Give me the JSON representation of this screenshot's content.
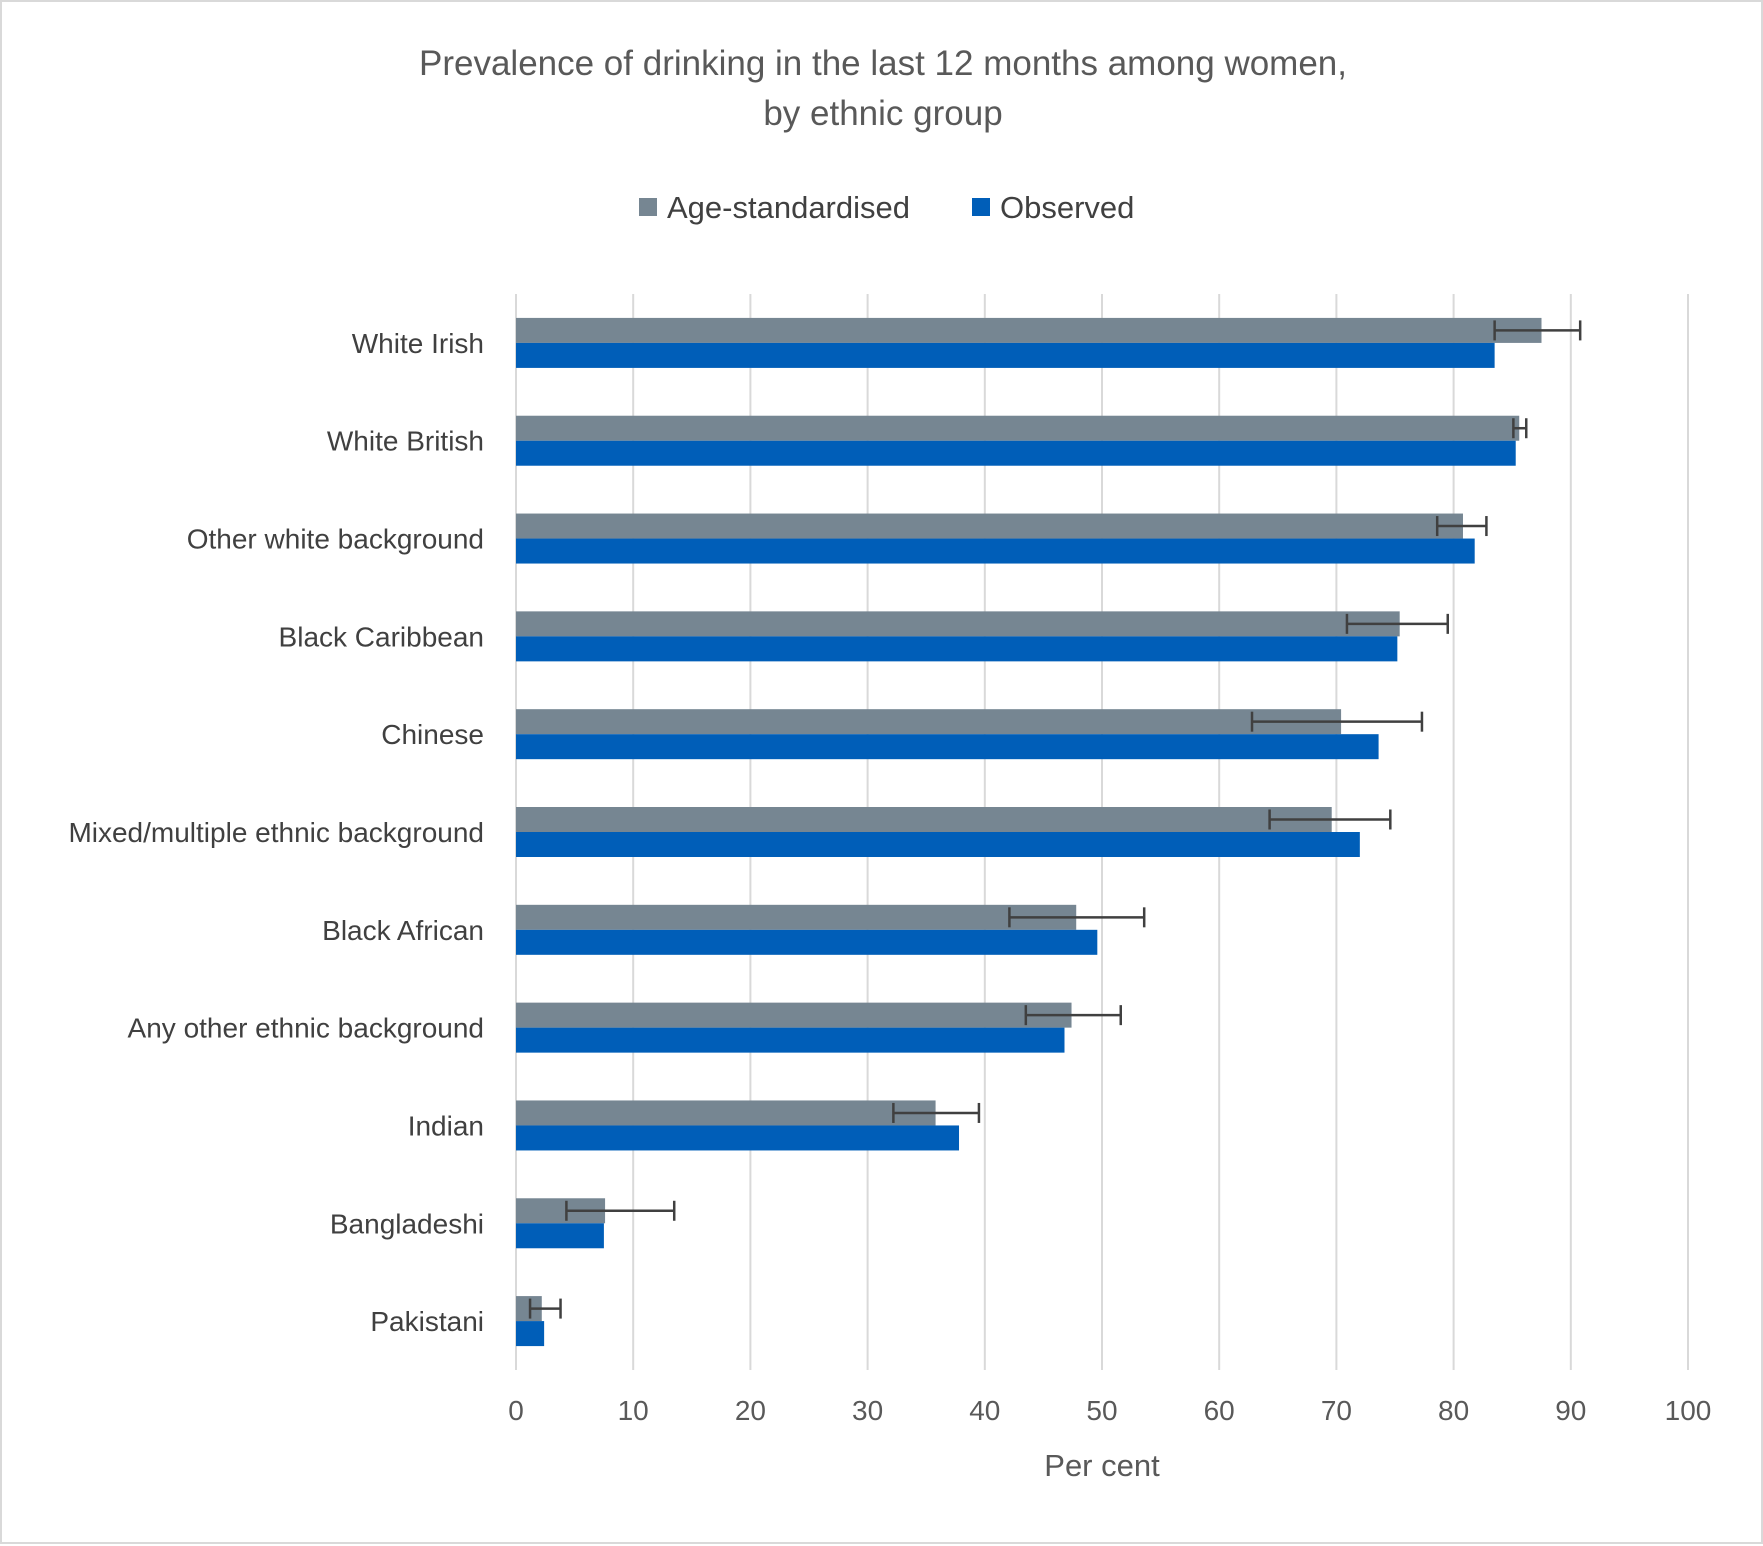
{
  "chart_data": {
    "type": "bar",
    "orientation": "horizontal",
    "title_line1": "Prevalence of drinking in the last 12 months among women,",
    "title_line2": "by ethnic group",
    "xlabel": "Per cent",
    "ylabel": "",
    "xlim": [
      0,
      100
    ],
    "ticks": [
      0,
      10,
      20,
      30,
      40,
      50,
      60,
      70,
      80,
      90,
      100
    ],
    "grid": true,
    "legend_position": "top",
    "categories": [
      "White Irish",
      "White British",
      "Other white background",
      "Black Caribbean",
      "Chinese",
      "Mixed/multiple ethnic background",
      "Black African",
      "Any other ethnic background",
      "Indian",
      "Bangladeshi",
      "Pakistani"
    ],
    "series": [
      {
        "name": "Age-standardised",
        "color": "#768692",
        "values": [
          87.5,
          85.6,
          80.8,
          75.4,
          70.4,
          69.6,
          47.8,
          47.4,
          35.8,
          7.6,
          2.2
        ],
        "error_low": [
          83.5,
          85.1,
          78.6,
          70.9,
          62.8,
          64.3,
          42.1,
          43.5,
          32.2,
          4.3,
          1.2
        ],
        "error_high": [
          90.8,
          86.2,
          82.8,
          79.5,
          77.3,
          74.6,
          53.6,
          51.6,
          39.5,
          13.5,
          3.8
        ]
      },
      {
        "name": "Observed",
        "color": "#005EB8",
        "values": [
          83.5,
          85.3,
          81.8,
          75.2,
          73.6,
          72.0,
          49.6,
          46.8,
          37.8,
          7.5,
          2.4
        ]
      }
    ]
  }
}
